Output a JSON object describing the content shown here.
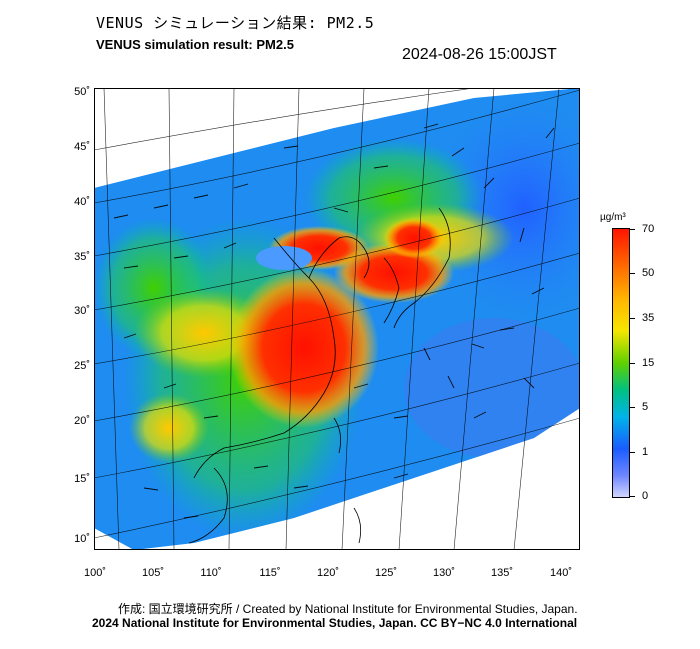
{
  "header": {
    "title_jp": "VENUS シミュレーション結果: PM2.5",
    "title_en": "VENUS simulation result: PM2.5",
    "datetime": "2024-08-26 15:00JST"
  },
  "map": {
    "lat_labels": [
      "50˚",
      "45˚",
      "40˚",
      "35˚",
      "30˚",
      "25˚",
      "20˚",
      "15˚",
      "10˚"
    ],
    "lon_labels": [
      "100˚",
      "105˚",
      "110˚",
      "115˚",
      "120˚",
      "125˚",
      "130˚",
      "135˚",
      "140˚"
    ]
  },
  "colorbar": {
    "unit": "µg/m³",
    "labels": [
      "70",
      "50",
      "35",
      "15",
      "5",
      "1",
      "0"
    ],
    "colors": [
      "#ff1500",
      "#ff6a00",
      "#ffb400",
      "#f5e600",
      "#60d000",
      "#00c080",
      "#00b4e8",
      "#1a5cff",
      "#6e86ff",
      "#d0d6ff"
    ]
  },
  "footer": {
    "credit_jp": "作成: 国立環境研究所 / Created by National Institute for Environmental Studies, Japan.",
    "copyright": "2024 National Institute for Environmental Studies, Japan. CC BY−NC 4.0 International"
  }
}
